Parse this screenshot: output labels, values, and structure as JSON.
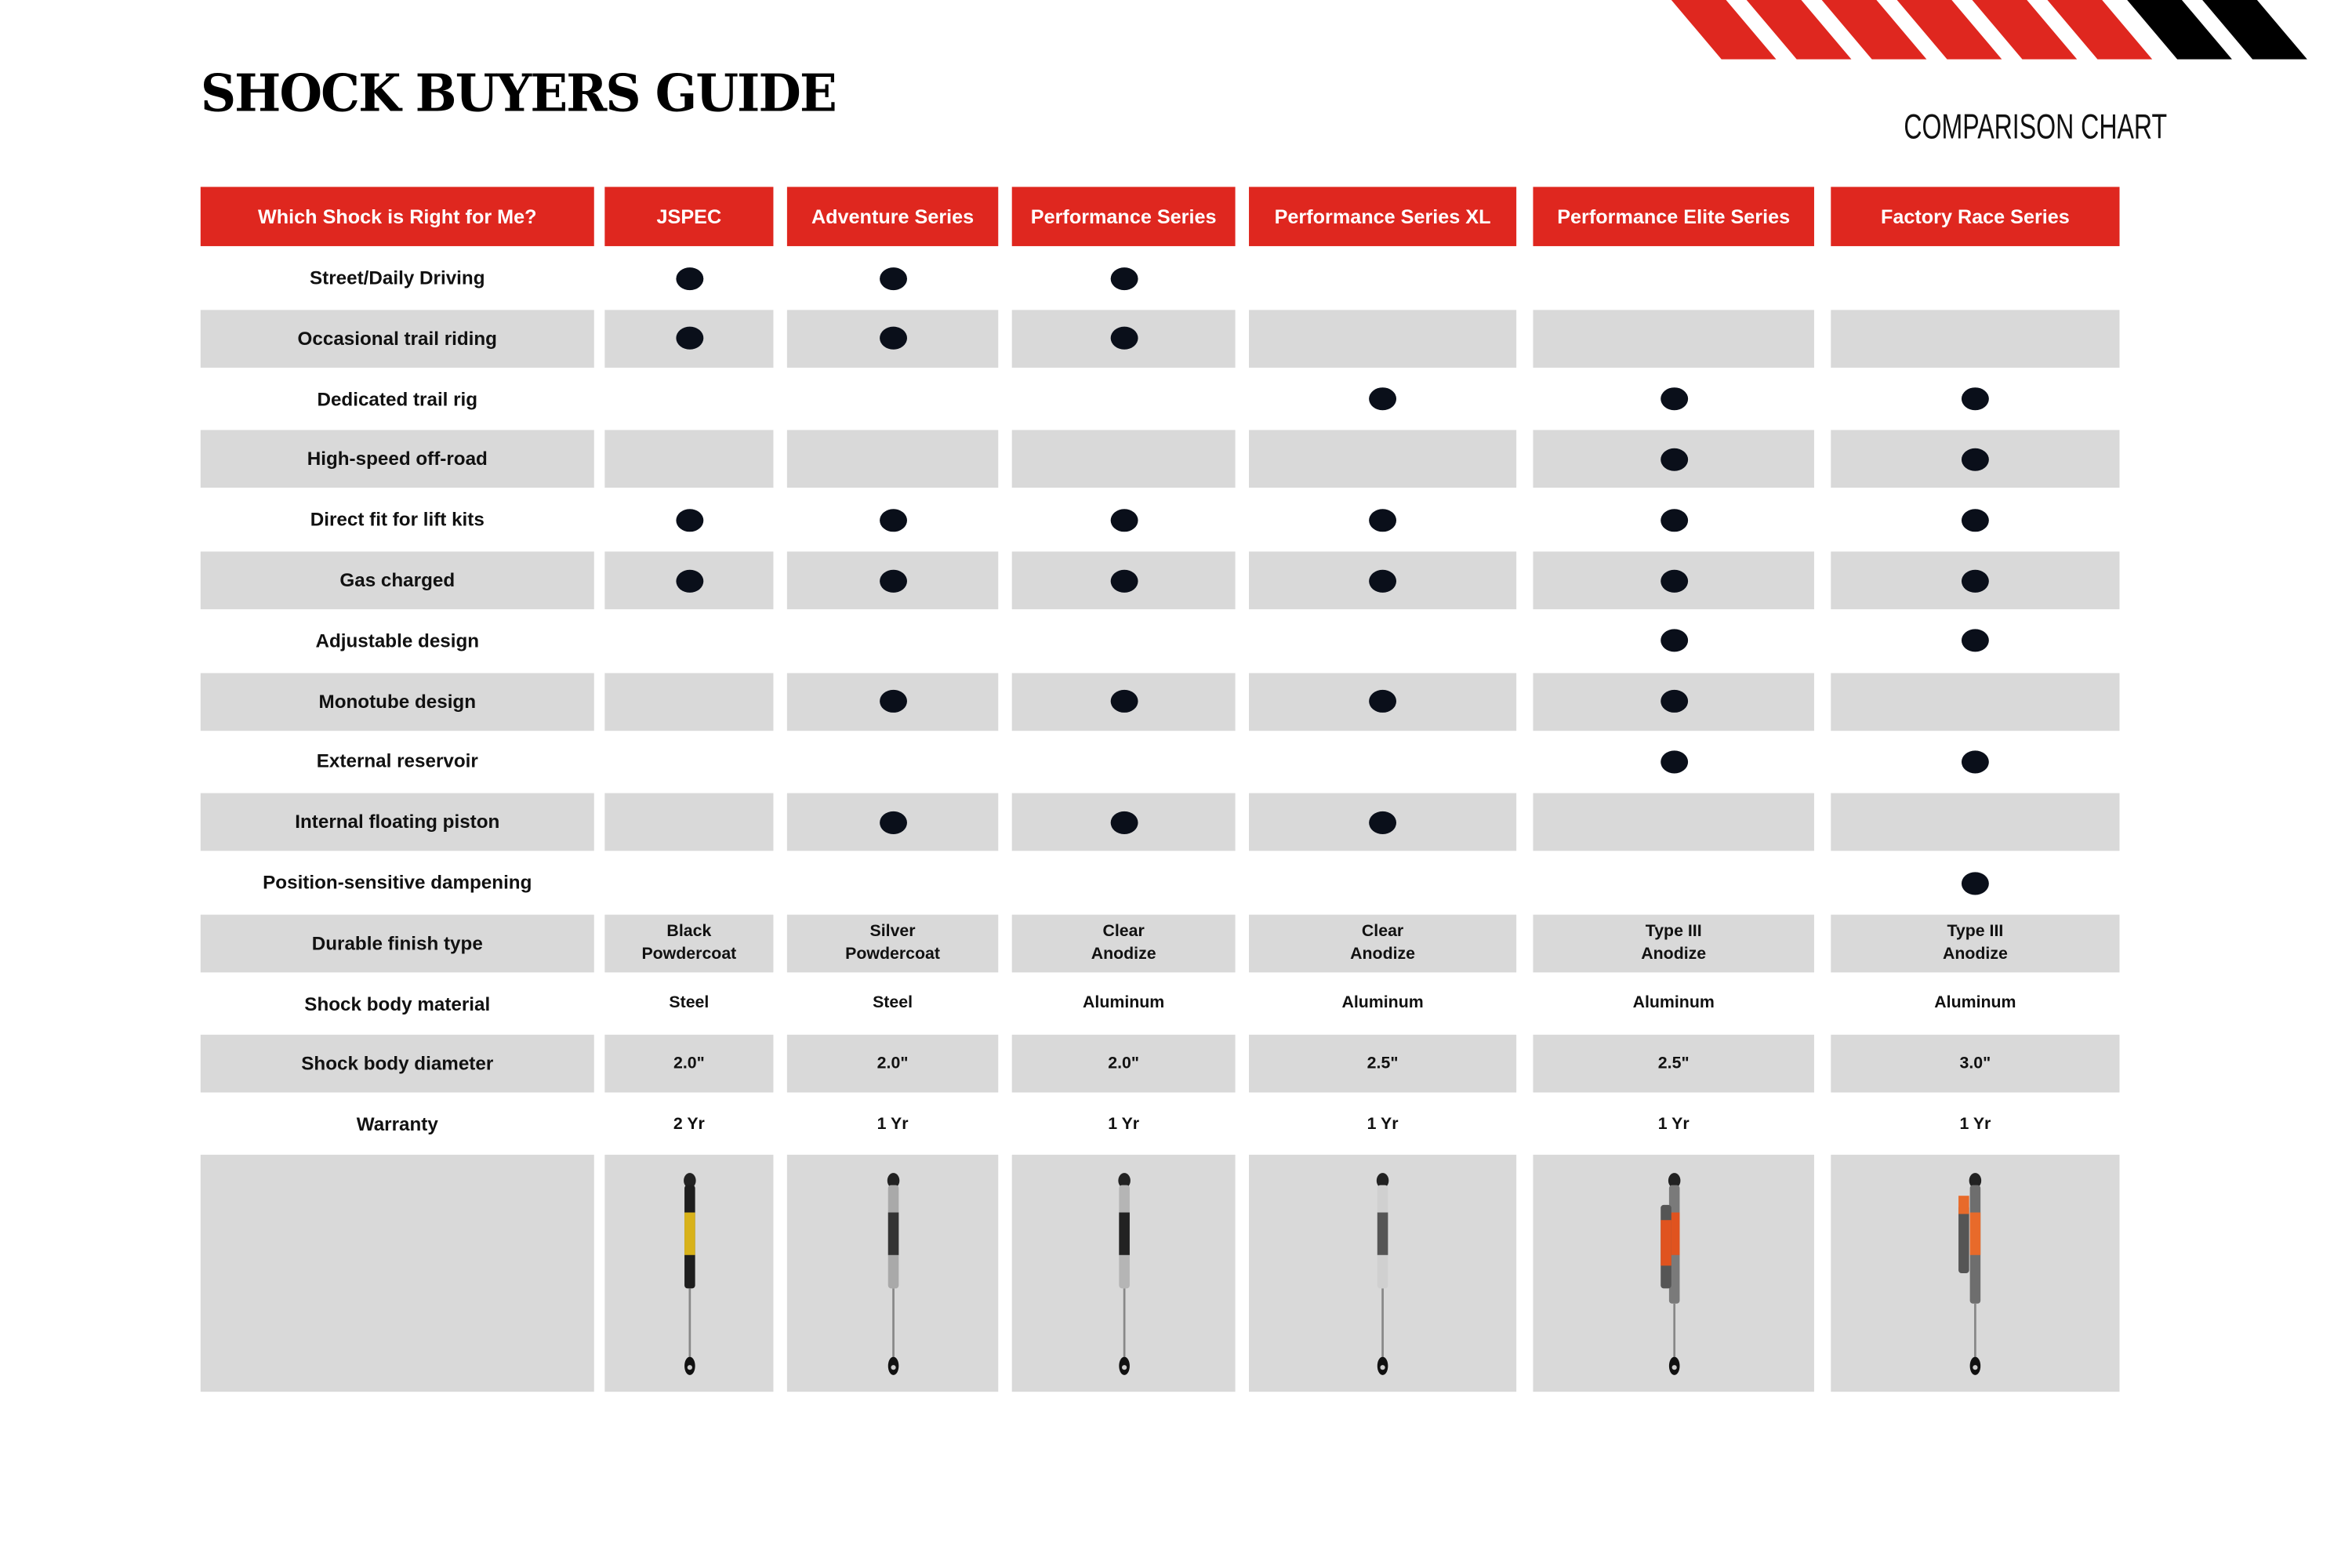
{
  "title": "SHOCK BUYERS GUIDE",
  "subtitle": "COMPARISON CHART",
  "colors": {
    "accent_red": "#df271f",
    "row_gray": "#d9d9d9",
    "dot": "#0a0f1a"
  },
  "header": {
    "corner": "Which Shock is Right for Me?",
    "series": [
      "JSPEC",
      "Adventure Series",
      "Performance Series",
      "Performance Series XL",
      "Performance Elite Series",
      "Factory Race Series"
    ]
  },
  "features": [
    {
      "label": "Street/Daily Driving",
      "marks": [
        true,
        true,
        true,
        false,
        false,
        false
      ]
    },
    {
      "label": "Occasional trail riding",
      "marks": [
        true,
        true,
        true,
        false,
        false,
        false
      ]
    },
    {
      "label": "Dedicated trail rig",
      "marks": [
        false,
        false,
        false,
        true,
        true,
        true
      ]
    },
    {
      "label": "High-speed off-road",
      "marks": [
        false,
        false,
        false,
        false,
        true,
        true
      ]
    },
    {
      "label": "Direct fit for lift kits",
      "marks": [
        true,
        true,
        true,
        true,
        true,
        true
      ]
    },
    {
      "label": "Gas charged",
      "marks": [
        true,
        true,
        true,
        true,
        true,
        true
      ]
    },
    {
      "label": "Adjustable design",
      "marks": [
        false,
        false,
        false,
        false,
        true,
        true
      ]
    },
    {
      "label": "Monotube design",
      "marks": [
        false,
        true,
        true,
        true,
        true,
        false
      ]
    },
    {
      "label": "External reservoir",
      "marks": [
        false,
        false,
        false,
        false,
        true,
        true
      ]
    },
    {
      "label": "Internal floating piston",
      "marks": [
        false,
        true,
        true,
        true,
        false,
        false
      ]
    },
    {
      "label": "Position-sensitive dampening",
      "marks": [
        false,
        false,
        false,
        false,
        false,
        true
      ]
    }
  ],
  "specs": [
    {
      "label": "Durable finish type",
      "values": [
        "Black\nPowdercoat",
        "Silver\nPowdercoat",
        "Clear\nAnodize",
        "Clear\nAnodize",
        "Type III\nAnodize",
        "Type III\nAnodize"
      ]
    },
    {
      "label": "Shock body material",
      "values": [
        "Steel",
        "Steel",
        "Aluminum",
        "Aluminum",
        "Aluminum",
        "Aluminum"
      ]
    },
    {
      "label": "Shock body diameter",
      "values": [
        "2.0\"",
        "2.0\"",
        "2.0\"",
        "2.5\"",
        "2.5\"",
        "3.0\""
      ]
    },
    {
      "label": "Warranty",
      "values": [
        "2 Yr",
        "1 Yr",
        "1 Yr",
        "1 Yr",
        "1 Yr",
        "1 Yr"
      ]
    }
  ],
  "shock_images": [
    {
      "body": "#1e1e1e",
      "accent": "#d8b21a",
      "reservoir": false
    },
    {
      "body": "#a9a9a9",
      "accent": "#333333",
      "reservoir": false
    },
    {
      "body": "#b5b5b5",
      "accent": "#222222",
      "reservoir": false
    },
    {
      "body": "#d0d0d0",
      "accent": "#555555",
      "reservoir": false
    },
    {
      "body": "#7a7a7a",
      "accent": "#e0531f",
      "reservoir": true
    },
    {
      "body": "#6e6e6e",
      "accent": "#e86a2a",
      "reservoir": true
    }
  ]
}
